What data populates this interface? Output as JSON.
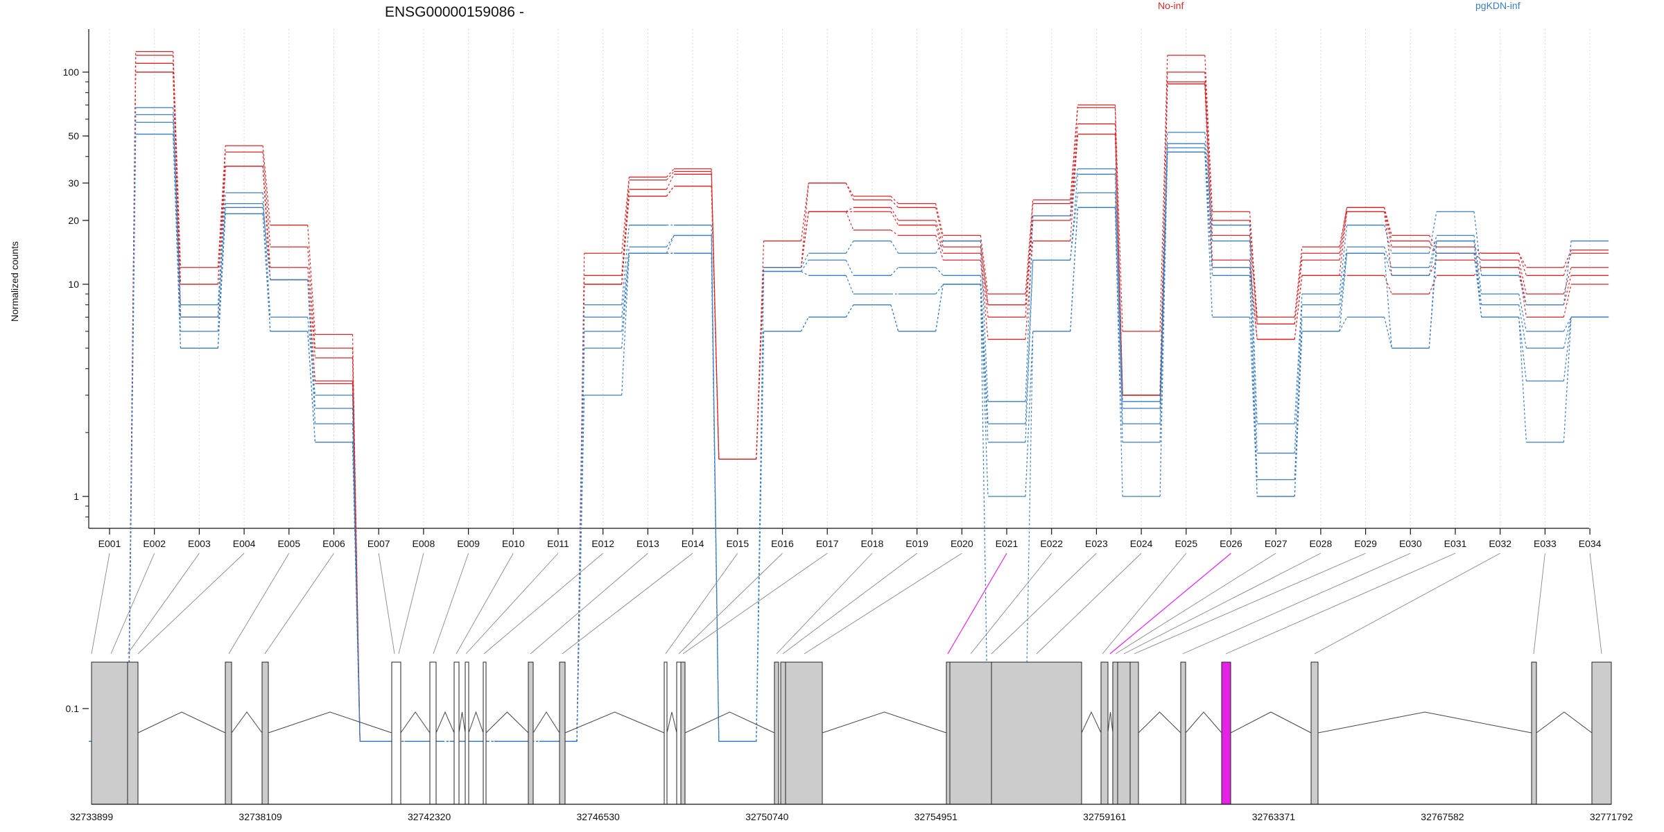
{
  "chart_data": {
    "type": "line",
    "title": "ENSG00000159086 -",
    "ylabel": "Normalized counts",
    "xlabel": "",
    "y_scale": "log",
    "y_ticks": [
      0.1,
      1,
      10,
      20,
      30,
      50,
      100
    ],
    "grid": "vertical dotted at exon centers",
    "legend": [
      {
        "name": "No-inf",
        "color": "#d62728",
        "position": "top"
      },
      {
        "name": "pgKDN-inf",
        "color": "#3a7dc0",
        "position": "top-right"
      }
    ],
    "categories": [
      "E001",
      "E002",
      "E003",
      "E004",
      "E005",
      "E006",
      "E007",
      "E008",
      "E009",
      "E010",
      "E011",
      "E012",
      "E013",
      "E014",
      "E015",
      "E016",
      "E017",
      "E018",
      "E019",
      "E020",
      "E021",
      "E022",
      "E023",
      "E024",
      "E025",
      "E026",
      "E027",
      "E028",
      "E029",
      "E030",
      "E031",
      "E032",
      "E033",
      "E034"
    ],
    "series": [
      {
        "group": "No-inf",
        "color": "#d62728",
        "values": [
          0.07,
          125,
          12,
          45,
          19,
          5.8,
          0.07,
          0.07,
          0.07,
          0.07,
          0.07,
          14,
          32,
          35,
          1.5,
          16,
          30,
          26,
          24,
          17,
          9,
          25,
          70,
          6,
          120,
          22,
          7,
          15,
          23,
          17,
          15,
          14,
          12,
          14.5
        ]
      },
      {
        "group": "No-inf",
        "color": "#d62728",
        "values": [
          0.07,
          120,
          10,
          42,
          15,
          5,
          0.07,
          0.07,
          0.07,
          0.07,
          0.07,
          11,
          31,
          34,
          1.5,
          12,
          30,
          25,
          23,
          16,
          8,
          24,
          68,
          3,
          100,
          20,
          6.5,
          14,
          23,
          16,
          14,
          14,
          11,
          14
        ]
      },
      {
        "group": "No-inf",
        "color": "#d62728",
        "values": [
          0.07,
          110,
          10,
          36,
          12,
          4.5,
          0.07,
          0.07,
          0.07,
          0.07,
          0.07,
          10,
          28,
          33,
          1.5,
          12,
          22,
          23,
          20,
          15,
          8,
          21,
          57,
          3,
          90,
          17,
          6.5,
          13,
          22,
          15,
          14,
          13,
          9,
          12
        ]
      },
      {
        "group": "No-inf",
        "color": "#d62728",
        "values": [
          0.07,
          100,
          7,
          36,
          10.5,
          3.5,
          0.07,
          0.07,
          0.07,
          0.07,
          0.07,
          10,
          26,
          29,
          1.5,
          12,
          22,
          22,
          19,
          14,
          7,
          20,
          51,
          3,
          88,
          13,
          5.5,
          11,
          22,
          11,
          13,
          12,
          8,
          11
        ]
      },
      {
        "group": "No-inf",
        "color": "#d62728",
        "values": [
          0.07,
          100,
          7,
          36,
          10.5,
          3.4,
          0.07,
          0.07,
          0.07,
          0.07,
          0.07,
          10,
          26,
          29,
          1.5,
          12,
          22,
          18,
          17,
          13,
          5.5,
          16,
          51,
          3,
          88,
          12,
          5.5,
          11,
          11,
          9,
          11,
          12,
          7,
          10
        ]
      },
      {
        "group": "pgKDN-inf",
        "color": "#3a7dc0",
        "values": [
          0.07,
          68,
          8,
          27,
          7,
          3,
          0.07,
          0.07,
          0.07,
          0.07,
          0.07,
          8,
          19,
          19,
          0.07,
          12,
          14,
          16,
          14,
          16,
          2.8,
          21,
          35,
          2.8,
          52,
          19,
          2.2,
          9,
          19,
          14,
          22,
          11,
          8,
          16
        ]
      },
      {
        "group": "pgKDN-inf",
        "color": "#3a7dc0",
        "values": [
          0.07,
          63,
          7,
          24,
          10.5,
          2.6,
          0.07,
          0.07,
          0.07,
          0.07,
          0.07,
          7,
          15,
          17,
          0.07,
          11.5,
          13,
          11,
          12,
          11,
          2.2,
          13,
          33,
          2.6,
          46,
          16,
          1.6,
          8,
          15,
          12,
          17,
          9,
          6,
          7
        ]
      },
      {
        "group": "pgKDN-inf",
        "color": "#3a7dc0",
        "values": [
          0.07,
          58,
          6,
          23,
          10.5,
          2.2,
          0.07,
          0.07,
          0.07,
          0.07,
          0.07,
          6,
          14,
          17,
          0.07,
          11.5,
          11,
          9,
          9,
          10,
          1.8,
          13,
          27,
          2.2,
          44,
          12,
          1.2,
          7,
          14,
          11,
          16,
          8,
          5,
          7
        ]
      },
      {
        "group": "pgKDN-inf",
        "color": "#3a7dc0",
        "values": [
          0.07,
          51,
          5,
          21.5,
          6,
          1.8,
          0.07,
          0.07,
          0.07,
          0.07,
          0.07,
          5,
          14,
          14,
          0.07,
          6,
          7,
          8,
          6,
          10,
          1,
          6,
          23,
          1.8,
          42,
          11,
          1,
          6,
          14,
          5,
          16,
          7,
          3.5,
          7
        ]
      },
      {
        "group": "pgKDN-inf",
        "color": "#3a7dc0",
        "values": [
          0.07,
          51,
          5,
          21.5,
          6,
          1.8,
          0.07,
          0.07,
          0.07,
          0.07,
          0.07,
          3,
          14,
          14,
          0.07,
          6,
          7,
          8,
          6,
          10,
          0.07,
          6,
          23,
          1,
          42,
          7,
          1,
          6,
          7,
          5,
          14,
          7,
          1.8,
          7
        ]
      }
    ],
    "genomic_ticks": [
      "32733899",
      "32738109",
      "32742320",
      "32746530",
      "32750740",
      "32754951",
      "32759161",
      "32763371",
      "32767582",
      "32771792"
    ],
    "highlighted_exons": [
      "E021",
      "E026"
    ],
    "highlight_color": "#e621e6"
  }
}
